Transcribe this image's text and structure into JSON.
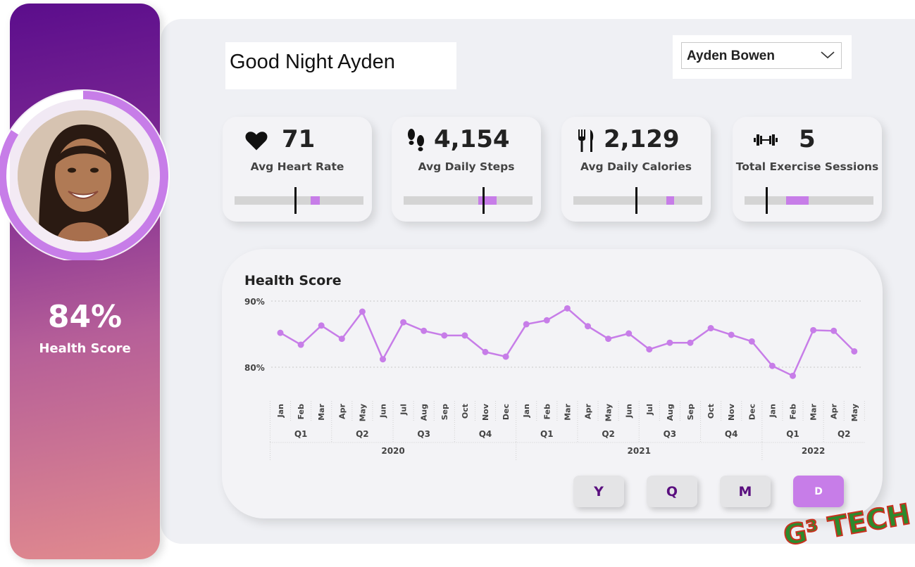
{
  "greeting": "Good Night Ayden",
  "user_select": {
    "selected": "Ayden Bowen"
  },
  "sidebar": {
    "score_value": "84%",
    "score_label": "Health Score",
    "ring_fraction": 0.84
  },
  "kpis": [
    {
      "icon": "heart-icon",
      "value": "71",
      "label": "Avg Heart Rate",
      "fill_start": 0.59,
      "fill_end": 0.66,
      "target": 0.47
    },
    {
      "icon": "footprints-icon",
      "value": "4,154",
      "label": "Avg Daily Steps",
      "fill_start": 0.58,
      "fill_end": 0.72,
      "target": 0.62
    },
    {
      "icon": "utensils-icon",
      "value": "2,129",
      "label": "Avg Daily Calories",
      "fill_start": 0.72,
      "fill_end": 0.78,
      "target": 0.49
    },
    {
      "icon": "dumbbell-icon",
      "value": "5",
      "label": "Total Exercise Sessions",
      "fill_start": 0.32,
      "fill_end": 0.5,
      "target": 0.17
    }
  ],
  "granularity": {
    "buttons": [
      "Y",
      "Q",
      "M",
      "D"
    ],
    "active": "D"
  },
  "logo_text": "G³ TECH",
  "colors": {
    "accent": "#c77de8",
    "purple_dark": "#5a0f7f",
    "card_bg": "#f3f3f6"
  },
  "chart_data": {
    "type": "line",
    "title": "Health Score",
    "ylim": [
      75,
      92
    ],
    "yticks": [
      80,
      90
    ],
    "ytick_labels": [
      "80%",
      "90%"
    ],
    "months": [
      "Jan",
      "Feb",
      "Mar",
      "Apr",
      "May",
      "Jun",
      "Jul",
      "Aug",
      "Sep",
      "Oct",
      "Nov",
      "Dec",
      "Jan",
      "Feb",
      "Mar",
      "Apr",
      "May",
      "Jun",
      "Jul",
      "Aug",
      "Sep",
      "Oct",
      "Nov",
      "Dec",
      "Jan",
      "Feb",
      "Mar",
      "Apr",
      "May"
    ],
    "quarters": [
      {
        "label": "Q1",
        "start": 0,
        "end": 2
      },
      {
        "label": "Q2",
        "start": 3,
        "end": 5
      },
      {
        "label": "Q3",
        "start": 6,
        "end": 8
      },
      {
        "label": "Q4",
        "start": 9,
        "end": 11
      },
      {
        "label": "Q1",
        "start": 12,
        "end": 14
      },
      {
        "label": "Q2",
        "start": 15,
        "end": 17
      },
      {
        "label": "Q3",
        "start": 18,
        "end": 20
      },
      {
        "label": "Q4",
        "start": 21,
        "end": 23
      },
      {
        "label": "Q1",
        "start": 24,
        "end": 26
      },
      {
        "label": "Q2",
        "start": 27,
        "end": 28
      }
    ],
    "years": [
      {
        "label": "2020",
        "start": 0,
        "end": 11
      },
      {
        "label": "2021",
        "start": 12,
        "end": 23
      },
      {
        "label": "2022",
        "start": 24,
        "end": 28
      }
    ],
    "values": [
      85.2,
      83.4,
      86.3,
      84.3,
      88.4,
      81.2,
      86.8,
      85.5,
      84.8,
      84.8,
      82.3,
      81.6,
      86.5,
      87.1,
      88.9,
      86.2,
      84.3,
      85.1,
      82.7,
      83.7,
      83.7,
      85.9,
      84.9,
      83.9,
      80.2,
      78.7,
      85.6,
      85.5,
      82.4
    ]
  }
}
